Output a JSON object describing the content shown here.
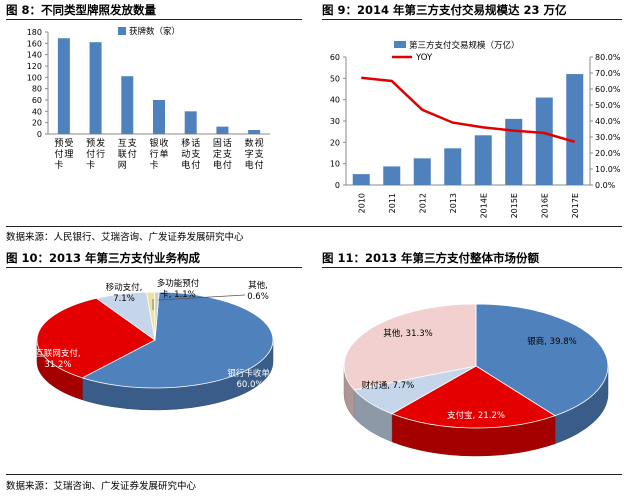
{
  "fig8": {
    "title": "图 8：不同类型牌照发放数量",
    "legend": "获牌数（家）",
    "source": "数据来源：人民银行、艾瑞咨询、广发证券发展研究中心"
  },
  "fig9": {
    "title": "图 9：2014 年第三方支付交易规模达 23 万亿",
    "legend_bar": "第三方支付交易规模（万亿）",
    "legend_line": "YOY"
  },
  "fig10": {
    "title": "图 10：2013 年第三方支付业务构成"
  },
  "fig11": {
    "title": "图 11：2013 年第三方支付整体市场份额",
    "source": "数据来源：艾瑞咨询、广发证券发展研究中心"
  },
  "colors": {
    "bar": "#4f81bd",
    "line": "#e00000",
    "blue": "#4f81bd",
    "red": "#e40000",
    "pink": "#f2d0d0",
    "lightblue": "#c5d5ea",
    "yellow": "#eee29a",
    "gray": "#cfcfcf"
  },
  "chart_data": [
    {
      "type": "bar",
      "categories": [
        "预付卡受理",
        "预付卡发行",
        "互联网支付",
        "银行卡收单",
        "移动电话支付",
        "固定电话支付",
        "数字电视支付"
      ],
      "series": [
        {
          "name": "获牌数（家）",
          "values": [
            169,
            162,
            102,
            60,
            40,
            13,
            7
          ]
        }
      ],
      "ylim": [
        0,
        180
      ],
      "yticks": [
        0,
        20,
        40,
        60,
        80,
        100,
        120,
        140,
        160,
        180
      ],
      "legend_position": "top-right",
      "grid": false
    },
    {
      "type": "bar",
      "categories": [
        "2010",
        "2011",
        "2012",
        "2013",
        "2014E",
        "2015E",
        "2016E",
        "2017E"
      ],
      "series": [
        {
          "name": "第三方支付交易规模（万亿）",
          "type": "bar",
          "values": [
            5.1,
            8.7,
            12.5,
            17.2,
            23.3,
            31.0,
            41.0,
            52.0
          ]
        },
        {
          "name": "YOY",
          "type": "line",
          "axis": "right",
          "values": [
            67.0,
            65.0,
            47.0,
            39.0,
            36.0,
            34.0,
            32.5,
            27.0
          ]
        }
      ],
      "ylim": [
        0,
        60
      ],
      "yticks": [
        0,
        10,
        20,
        30,
        40,
        50,
        60
      ],
      "y2lim": [
        0,
        80
      ],
      "y2ticks": [
        "0.0%",
        "10.0%",
        "20.0%",
        "30.0%",
        "40.0%",
        "50.0%",
        "60.0%",
        "70.0%",
        "80.0%"
      ],
      "legend_position": "top-left"
    },
    {
      "type": "pie",
      "labels": [
        "银行卡收单",
        "互联网支付",
        "移动支付",
        "多功能预付卡",
        "其他"
      ],
      "values": [
        60.0,
        31.2,
        7.1,
        1.1,
        0.6
      ],
      "display_labels": [
        "银行卡收单,\n60.0%",
        "互联网支付,\n31.2%",
        "移动支付,\n7.1%",
        "多功能预付\n卡, 1.1%",
        "其他,\n0.6%"
      ]
    },
    {
      "type": "pie",
      "labels": [
        "银商",
        "支付宝",
        "财付通",
        "其他"
      ],
      "values": [
        39.8,
        21.2,
        7.7,
        31.3
      ],
      "display_labels": [
        "银商, 39.8%",
        "支付宝, 21.2%",
        "财付通, 7.7%",
        "其他, 31.3%"
      ]
    }
  ]
}
